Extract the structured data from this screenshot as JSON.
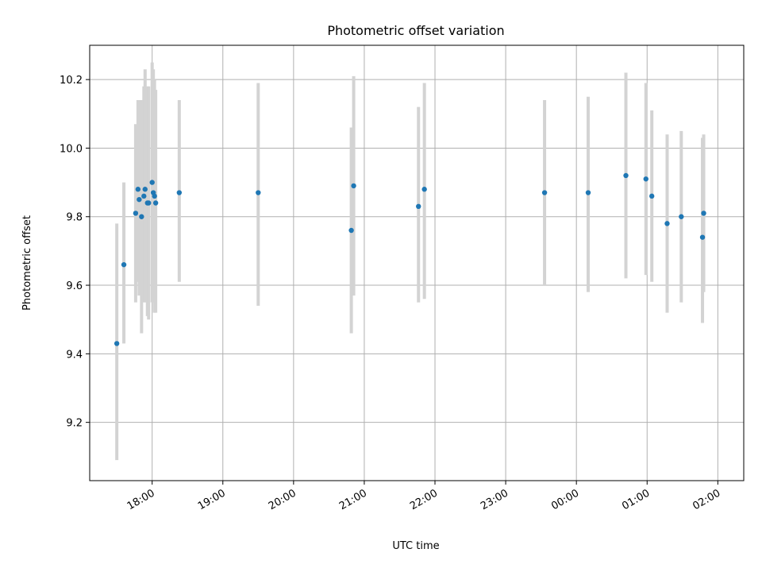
{
  "chart_data": {
    "type": "scatter",
    "title": "Photometric offset variation",
    "xlabel": "UTC time",
    "ylabel": "Photometric offset",
    "grid": true,
    "x_axis": "time",
    "xlim": [
      "17:07",
      "02:22"
    ],
    "ylim": [
      9.03,
      10.3
    ],
    "xticks": [
      "18:00",
      "19:00",
      "20:00",
      "21:00",
      "22:00",
      "23:00",
      "00:00",
      "01:00",
      "02:00"
    ],
    "yticks": [
      9.2,
      9.4,
      9.6,
      9.8,
      10.0,
      10.2
    ],
    "colors": {
      "points": "#1f77b4",
      "errorbars": "#d3d3d3"
    },
    "points": [
      {
        "t": "17:30",
        "y": 9.43,
        "lo": 9.09,
        "hi": 9.78
      },
      {
        "t": "17:36",
        "y": 9.66,
        "lo": 9.43,
        "hi": 9.9
      },
      {
        "t": "17:46",
        "y": 9.81,
        "lo": 9.55,
        "hi": 10.07
      },
      {
        "t": "17:48",
        "y": 9.88,
        "lo": 9.61,
        "hi": 10.14
      },
      {
        "t": "17:49",
        "y": 9.85,
        "lo": 9.57,
        "hi": 10.14
      },
      {
        "t": "17:51",
        "y": 9.8,
        "lo": 9.46,
        "hi": 10.14
      },
      {
        "t": "17:53",
        "y": 9.86,
        "lo": 9.55,
        "hi": 10.18
      },
      {
        "t": "17:54",
        "y": 9.88,
        "lo": 9.55,
        "hi": 10.23
      },
      {
        "t": "17:56",
        "y": 9.84,
        "lo": 9.51,
        "hi": 10.18
      },
      {
        "t": "17:57",
        "y": 9.84,
        "lo": 9.5,
        "hi": 10.18
      },
      {
        "t": "18:00",
        "y": 9.9,
        "lo": 9.55,
        "hi": 10.25
      },
      {
        "t": "18:01",
        "y": 9.87,
        "lo": 9.55,
        "hi": 10.23
      },
      {
        "t": "18:02",
        "y": 9.86,
        "lo": 9.52,
        "hi": 10.2
      },
      {
        "t": "18:03",
        "y": 9.84,
        "lo": 9.52,
        "hi": 10.17
      },
      {
        "t": "18:23",
        "y": 9.87,
        "lo": 9.61,
        "hi": 10.14
      },
      {
        "t": "19:30",
        "y": 9.87,
        "lo": 9.54,
        "hi": 10.19
      },
      {
        "t": "20:49",
        "y": 9.76,
        "lo": 9.46,
        "hi": 10.06
      },
      {
        "t": "20:51",
        "y": 9.89,
        "lo": 9.57,
        "hi": 10.21
      },
      {
        "t": "21:46",
        "y": 9.83,
        "lo": 9.55,
        "hi": 10.12
      },
      {
        "t": "21:51",
        "y": 9.88,
        "lo": 9.56,
        "hi": 10.19
      },
      {
        "t": "23:33",
        "y": 9.87,
        "lo": 9.6,
        "hi": 10.14
      },
      {
        "t": "00:10",
        "y": 9.87,
        "lo": 9.58,
        "hi": 10.15
      },
      {
        "t": "00:42",
        "y": 9.92,
        "lo": 9.62,
        "hi": 10.22
      },
      {
        "t": "00:59",
        "y": 9.91,
        "lo": 9.63,
        "hi": 10.19
      },
      {
        "t": "01:04",
        "y": 9.86,
        "lo": 9.61,
        "hi": 10.11
      },
      {
        "t": "01:17",
        "y": 9.78,
        "lo": 9.52,
        "hi": 10.04
      },
      {
        "t": "01:29",
        "y": 9.8,
        "lo": 9.55,
        "hi": 10.05
      },
      {
        "t": "01:47",
        "y": 9.74,
        "lo": 9.49,
        "hi": 10.03
      },
      {
        "t": "01:48",
        "y": 9.81,
        "lo": 9.58,
        "hi": 10.04
      }
    ]
  }
}
